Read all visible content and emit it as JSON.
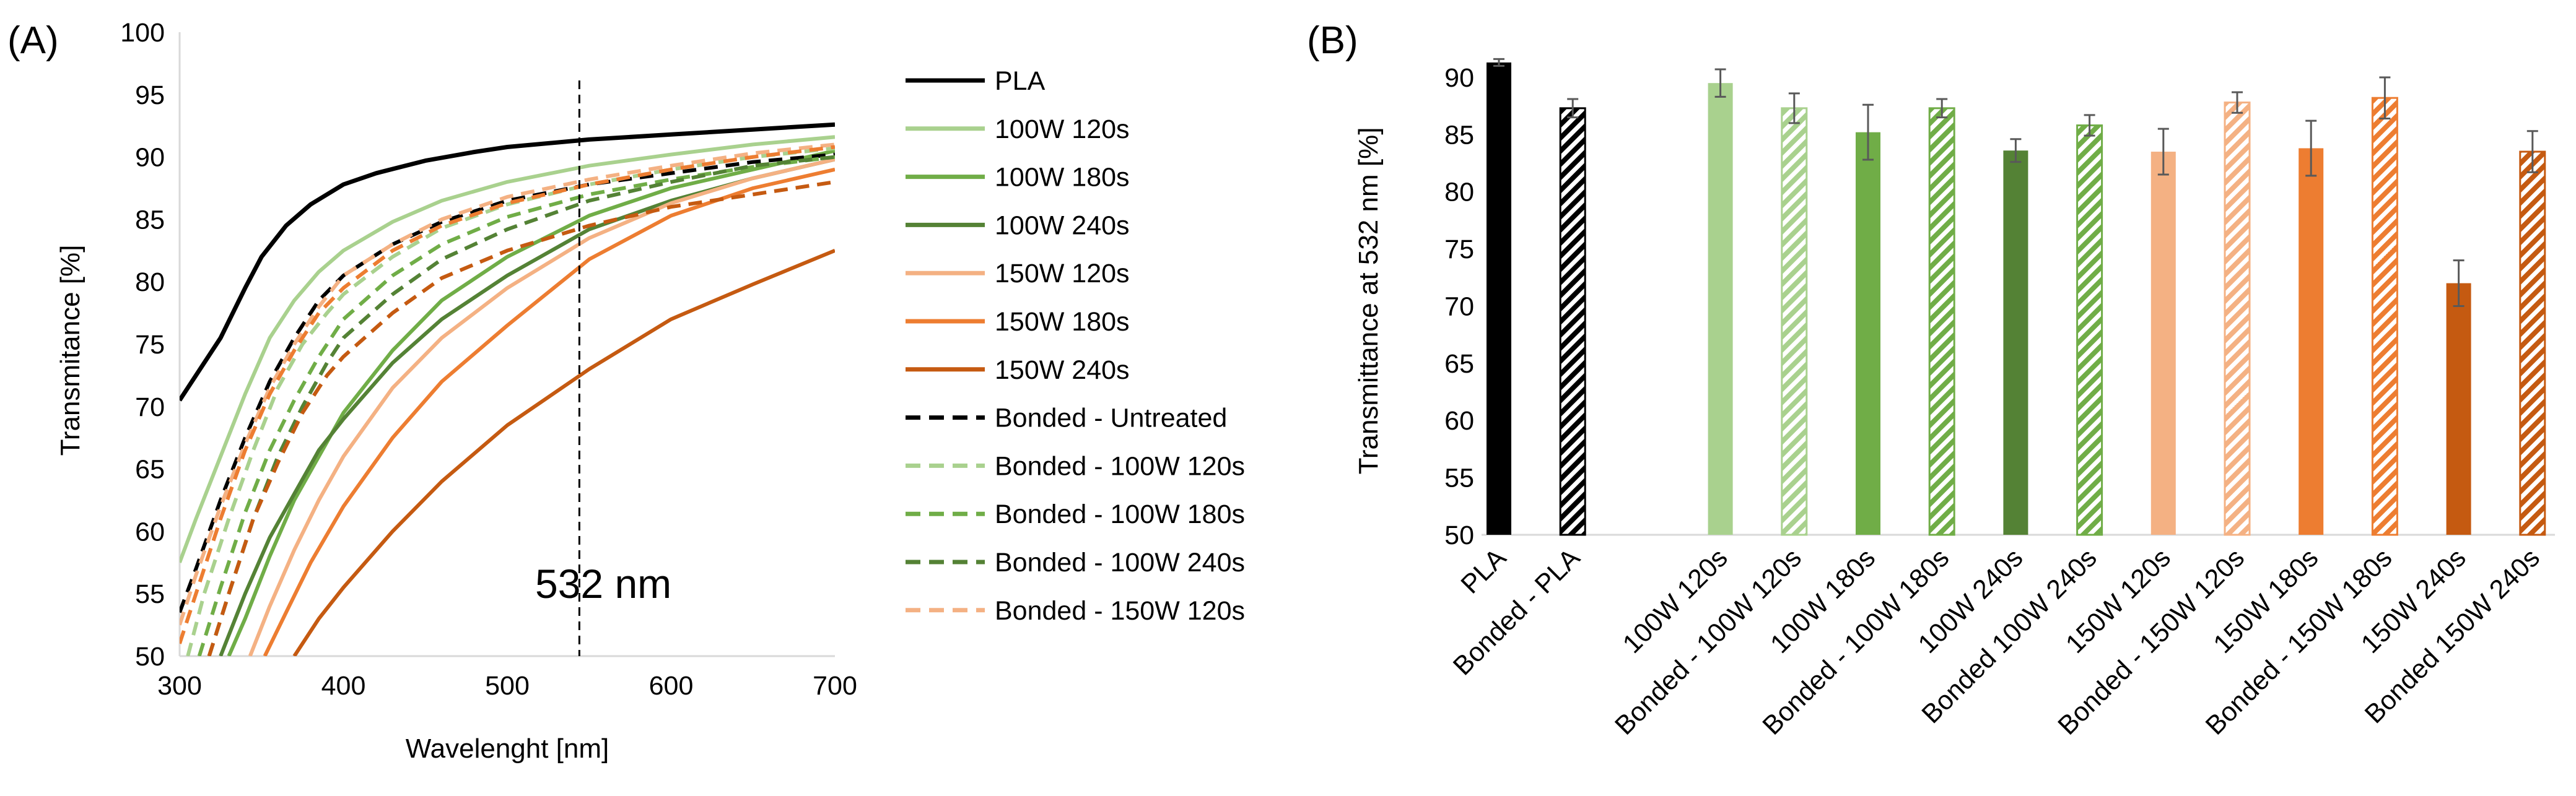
{
  "panelA": {
    "panel_label": "(A)",
    "annotation": "532 nm",
    "annotation_x": 544
  },
  "panelB": {
    "panel_label": "(B)"
  },
  "chart_data": [
    {
      "type": "line",
      "title": "",
      "xlabel": "Wavelenght [nm]",
      "ylabel": "Transmitance [%]",
      "xlim": [
        300,
        700
      ],
      "ylim": [
        50,
        100
      ],
      "xticks": [
        300,
        400,
        500,
        600,
        700
      ],
      "yticks": [
        50,
        55,
        60,
        65,
        70,
        75,
        80,
        85,
        90,
        95,
        100
      ],
      "grid": false,
      "legend_position": "right",
      "series": [
        {
          "name": "PLA",
          "color": "#000000",
          "dashed": false,
          "points": [
            [
              300,
              70.5
            ],
            [
              310,
              72.5
            ],
            [
              325,
              75.5
            ],
            [
              340,
              79.5
            ],
            [
              350,
              82
            ],
            [
              365,
              84.5
            ],
            [
              380,
              86.2
            ],
            [
              400,
              87.8
            ],
            [
              420,
              88.7
            ],
            [
              450,
              89.7
            ],
            [
              480,
              90.4
            ],
            [
              500,
              90.8
            ],
            [
              550,
              91.4
            ],
            [
              600,
              91.8
            ],
            [
              650,
              92.2
            ],
            [
              700,
              92.6
            ]
          ]
        },
        {
          "name": "100W 120s",
          "color": "#a9d18e",
          "dashed": false,
          "points": [
            [
              300,
              57.5
            ],
            [
              310,
              61
            ],
            [
              325,
              66
            ],
            [
              340,
              71
            ],
            [
              355,
              75.5
            ],
            [
              370,
              78.5
            ],
            [
              385,
              80.8
            ],
            [
              400,
              82.5
            ],
            [
              430,
              84.8
            ],
            [
              460,
              86.5
            ],
            [
              500,
              88
            ],
            [
              550,
              89.3
            ],
            [
              600,
              90.2
            ],
            [
              650,
              91
            ],
            [
              700,
              91.6
            ]
          ]
        },
        {
          "name": "100W 180s",
          "color": "#70ad47",
          "dashed": false,
          "points": [
            [
              330,
              50
            ],
            [
              340,
              53
            ],
            [
              355,
              58
            ],
            [
              370,
              62.5
            ],
            [
              385,
              66
            ],
            [
              400,
              69.5
            ],
            [
              430,
              74.5
            ],
            [
              460,
              78.5
            ],
            [
              500,
              82
            ],
            [
              550,
              85.3
            ],
            [
              600,
              87.5
            ],
            [
              650,
              89
            ],
            [
              700,
              90.5
            ]
          ]
        },
        {
          "name": "100W 240s",
          "color": "#548235",
          "dashed": false,
          "points": [
            [
              325,
              50
            ],
            [
              340,
              55
            ],
            [
              355,
              59.5
            ],
            [
              370,
              63
            ],
            [
              385,
              66.5
            ],
            [
              400,
              69
            ],
            [
              430,
              73.5
            ],
            [
              460,
              77
            ],
            [
              500,
              80.5
            ],
            [
              550,
              84.2
            ],
            [
              600,
              86.5
            ],
            [
              650,
              88.3
            ],
            [
              700,
              89.8
            ]
          ]
        },
        {
          "name": "150W 120s",
          "color": "#f4b183",
          "dashed": false,
          "points": [
            [
              343,
              50
            ],
            [
              355,
              54
            ],
            [
              370,
              58.5
            ],
            [
              385,
              62.5
            ],
            [
              400,
              66
            ],
            [
              430,
              71.5
            ],
            [
              460,
              75.5
            ],
            [
              500,
              79.5
            ],
            [
              550,
              83.5
            ],
            [
              600,
              86.3
            ],
            [
              650,
              88.3
            ],
            [
              700,
              89.8
            ]
          ]
        },
        {
          "name": "150W 180s",
          "color": "#ed7d31",
          "dashed": false,
          "points": [
            [
              352,
              50
            ],
            [
              365,
              53.5
            ],
            [
              380,
              57.5
            ],
            [
              400,
              62
            ],
            [
              430,
              67.5
            ],
            [
              460,
              72
            ],
            [
              500,
              76.5
            ],
            [
              550,
              81.8
            ],
            [
              600,
              85.3
            ],
            [
              650,
              87.5
            ],
            [
              700,
              89
            ]
          ]
        },
        {
          "name": "150W 240s",
          "color": "#c55a11",
          "dashed": false,
          "points": [
            [
              370,
              50
            ],
            [
              385,
              53
            ],
            [
              400,
              55.5
            ],
            [
              430,
              60
            ],
            [
              460,
              64
            ],
            [
              500,
              68.5
            ],
            [
              550,
              73
            ],
            [
              600,
              77
            ],
            [
              650,
              79.8
            ],
            [
              700,
              82.5
            ]
          ]
        },
        {
          "name": "Bonded - Untreated",
          "color": "#000000",
          "dashed": true,
          "points": [
            [
              300,
              53.5
            ],
            [
              310,
              57
            ],
            [
              325,
              62.5
            ],
            [
              340,
              67.5
            ],
            [
              355,
              72
            ],
            [
              370,
              75.5
            ],
            [
              385,
              78.5
            ],
            [
              400,
              80.5
            ],
            [
              430,
              83
            ],
            [
              460,
              84.8
            ],
            [
              500,
              86.5
            ],
            [
              550,
              87.8
            ],
            [
              600,
              88.7
            ],
            [
              650,
              89.6
            ],
            [
              700,
              90.2
            ]
          ]
        },
        {
          "name": "Bonded - 100W 120s",
          "color": "#a9d18e",
          "dashed": true,
          "points": [
            [
              305,
              50
            ],
            [
              315,
              55
            ],
            [
              330,
              61
            ],
            [
              345,
              66.5
            ],
            [
              360,
              71.5
            ],
            [
              375,
              75
            ],
            [
              390,
              77.5
            ],
            [
              400,
              79
            ],
            [
              430,
              82
            ],
            [
              460,
              84.3
            ],
            [
              500,
              86.2
            ],
            [
              550,
              87.8
            ],
            [
              600,
              89
            ],
            [
              650,
              90
            ],
            [
              700,
              90.7
            ]
          ]
        },
        {
          "name": "Bonded - 100W 180s",
          "color": "#70ad47",
          "dashed": true,
          "points": [
            [
              312,
              50
            ],
            [
              325,
              55.5
            ],
            [
              340,
              61.5
            ],
            [
              355,
              66.5
            ],
            [
              370,
              70.5
            ],
            [
              385,
              74
            ],
            [
              400,
              77
            ],
            [
              430,
              80.5
            ],
            [
              460,
              83
            ],
            [
              500,
              85.2
            ],
            [
              550,
              87
            ],
            [
              600,
              88.2
            ],
            [
              650,
              89.2
            ],
            [
              700,
              90
            ]
          ]
        },
        {
          "name": "Bonded - 100W 240s",
          "color": "#548235",
          "dashed": true,
          "points": [
            [
              318,
              50
            ],
            [
              330,
              55
            ],
            [
              345,
              61
            ],
            [
              360,
              66
            ],
            [
              375,
              70
            ],
            [
              390,
              73.5
            ],
            [
              400,
              75.5
            ],
            [
              430,
              79
            ],
            [
              460,
              81.8
            ],
            [
              500,
              84.2
            ],
            [
              550,
              86.5
            ],
            [
              600,
              88
            ],
            [
              650,
              89.3
            ],
            [
              700,
              90
            ]
          ]
        },
        {
          "name": "Bonded - 150W 120s",
          "color": "#f4b183",
          "dashed": true,
          "points": [
            [
              300,
              52.5
            ],
            [
              310,
              56.5
            ],
            [
              325,
              62
            ],
            [
              340,
              67
            ],
            [
              355,
              71.5
            ],
            [
              370,
              75
            ],
            [
              385,
              78
            ],
            [
              400,
              80.5
            ],
            [
              430,
              83
            ],
            [
              460,
              85
            ],
            [
              500,
              86.8
            ],
            [
              550,
              88.2
            ],
            [
              600,
              89.3
            ],
            [
              650,
              90.3
            ],
            [
              700,
              91
            ]
          ]
        },
        {
          "name": "Bonded - 150W 180s",
          "color": "#ed7d31",
          "dashed": true,
          "legend": false,
          "points": [
            [
              300,
              51
            ],
            [
              310,
              55
            ],
            [
              325,
              61
            ],
            [
              340,
              66.5
            ],
            [
              355,
              71
            ],
            [
              370,
              74.5
            ],
            [
              385,
              77.5
            ],
            [
              400,
              79.5
            ],
            [
              430,
              82.5
            ],
            [
              460,
              84.5
            ],
            [
              500,
              86.3
            ],
            [
              550,
              87.8
            ],
            [
              600,
              89
            ],
            [
              650,
              90
            ],
            [
              700,
              90.8
            ]
          ]
        },
        {
          "name": "Bonded - 150W 240s",
          "color": "#c55a11",
          "dashed": true,
          "legend": false,
          "points": [
            [
              318,
              50
            ],
            [
              330,
              55
            ],
            [
              345,
              61
            ],
            [
              360,
              65.5
            ],
            [
              375,
              69.5
            ],
            [
              390,
              72.5
            ],
            [
              400,
              74
            ],
            [
              430,
              77.5
            ],
            [
              460,
              80.3
            ],
            [
              500,
              82.5
            ],
            [
              550,
              84.5
            ],
            [
              600,
              86
            ],
            [
              650,
              87
            ],
            [
              700,
              88
            ]
          ]
        }
      ]
    },
    {
      "type": "bar",
      "title": "",
      "xlabel": "",
      "ylabel": "Transmittance at 532 nm [%]",
      "ylim": [
        50,
        92
      ],
      "yticks": [
        50,
        55,
        60,
        65,
        70,
        75,
        80,
        85,
        90
      ],
      "grid": false,
      "bars": [
        {
          "label": "PLA",
          "value": 91.3,
          "error": 0.3,
          "color": "#000000",
          "hatched": false,
          "slot": 0
        },
        {
          "label": "Bonded - PLA",
          "value": 87.3,
          "error": 0.8,
          "color": "#000000",
          "hatched": true,
          "slot": 1
        },
        {
          "label": "100W 120s",
          "value": 89.5,
          "error": 1.2,
          "color": "#a9d18e",
          "hatched": false,
          "slot": 3
        },
        {
          "label": "Bonded - 100W 120s",
          "value": 87.3,
          "error": 1.3,
          "color": "#a9d18e",
          "hatched": true,
          "slot": 4
        },
        {
          "label": "100W 180s",
          "value": 85.2,
          "error": 2.4,
          "color": "#70ad47",
          "hatched": false,
          "slot": 5
        },
        {
          "label": "Bonded - 100W 180s",
          "value": 87.3,
          "error": 0.8,
          "color": "#70ad47",
          "hatched": true,
          "slot": 6
        },
        {
          "label": "100W 240s",
          "value": 83.6,
          "error": 1.0,
          "color": "#548235",
          "hatched": false,
          "slot": 7
        },
        {
          "label": "Bonded 100W 240s",
          "value": 85.8,
          "error": 0.9,
          "color": "#70ad47",
          "hatched": true,
          "slot": 8
        },
        {
          "label": "150W 120s",
          "value": 83.5,
          "error": 2.0,
          "color": "#f4b183",
          "hatched": false,
          "slot": 9
        },
        {
          "label": "Bonded - 150W 120s",
          "value": 87.8,
          "error": 0.9,
          "color": "#f4b183",
          "hatched": true,
          "slot": 10
        },
        {
          "label": "150W 180s",
          "value": 83.8,
          "error": 2.4,
          "color": "#ed7d31",
          "hatched": false,
          "slot": 11
        },
        {
          "label": "Bonded - 150W 180s",
          "value": 88.2,
          "error": 1.8,
          "color": "#ed7d31",
          "hatched": true,
          "slot": 12
        },
        {
          "label": "150W 240s",
          "value": 72.0,
          "error": 2.0,
          "color": "#c55a11",
          "hatched": false,
          "slot": 13
        },
        {
          "label": "Bonded 150W 240s",
          "value": 83.5,
          "error": 1.8,
          "color": "#c55a11",
          "hatched": true,
          "slot": 14
        }
      ]
    }
  ]
}
